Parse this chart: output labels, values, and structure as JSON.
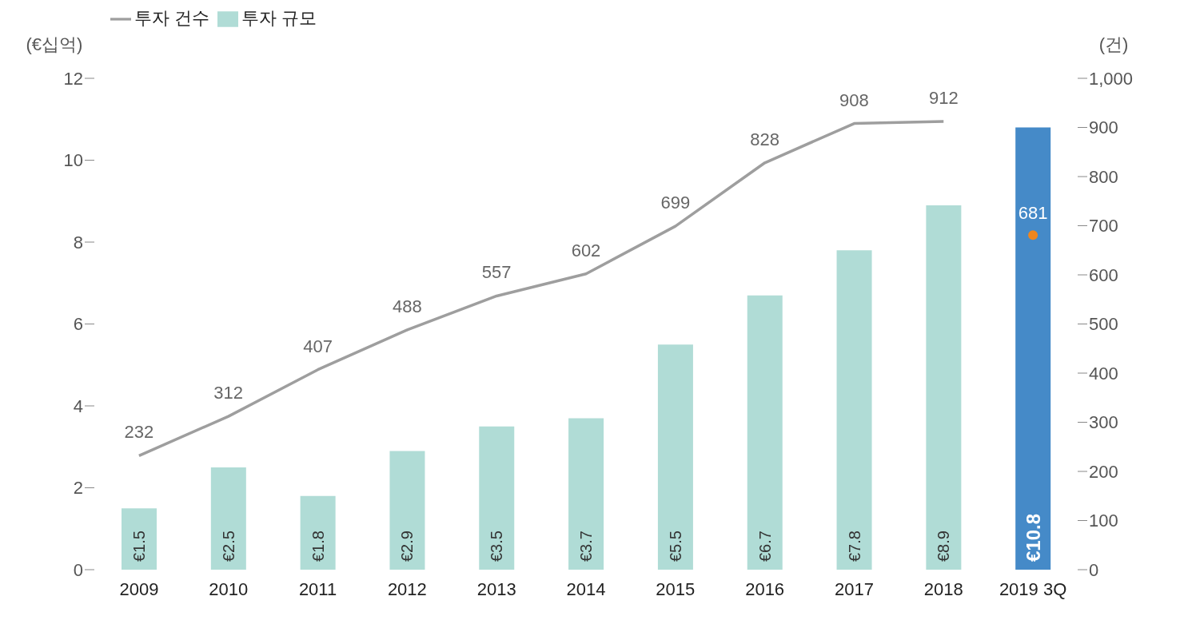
{
  "chart_data": {
    "type": "bar",
    "categories": [
      "2009",
      "2010",
      "2011",
      "2012",
      "2013",
      "2014",
      "2015",
      "2016",
      "2017",
      "2018",
      "2019 3Q"
    ],
    "ylabel": "(€십억)",
    "y2label": "(건)",
    "ylim": [
      0,
      12
    ],
    "yticks": [
      0,
      2,
      4,
      6,
      8,
      10,
      12
    ],
    "y2lim": [
      0,
      1000
    ],
    "y2ticks": [
      0,
      100,
      200,
      300,
      400,
      500,
      600,
      700,
      800,
      900,
      {
        "value": 1000,
        "label": "1,000"
      }
    ],
    "legend": "top left",
    "grid": false,
    "line_style": "solid",
    "series": [
      {
        "name": "투자 규모",
        "color": "#b0dcd6",
        "colors": [
          "#b0dcd6",
          "#b0dcd6",
          "#b0dcd6",
          "#b0dcd6",
          "#b0dcd6",
          "#b0dcd6",
          "#b0dcd6",
          "#b0dcd6",
          "#b0dcd6",
          "#b0dcd6",
          "#458ac8"
        ],
        "values": [
          1.5,
          2.5,
          1.8,
          2.9,
          3.5,
          3.7,
          5.5,
          6.7,
          7.8,
          8.9,
          10.8
        ],
        "value_labels": [
          "€1.5",
          "€2.5",
          "€1.8",
          "€2.9",
          "€3.5",
          "€3.7",
          "€5.5",
          "€6.7",
          "€7.8",
          "€8.9",
          "€10.8"
        ]
      },
      {
        "name": "투자 건수",
        "type": "line",
        "marker": "none",
        "axis": "y2",
        "color": "#9e9e9e",
        "values": [
          232,
          312,
          407,
          488,
          557,
          602,
          699,
          828,
          908,
          912,
          null
        ],
        "value_labels": [
          "232",
          "312",
          "407",
          "488",
          "557",
          "602",
          "699",
          "828",
          "908",
          "912",
          null
        ]
      },
      {
        "type": "scatter",
        "marker": "circle",
        "axis": "y2",
        "color": "#f0861e",
        "values": [
          null,
          null,
          null,
          null,
          null,
          null,
          null,
          null,
          null,
          null,
          681
        ],
        "value_labels": [
          null,
          null,
          null,
          null,
          null,
          null,
          null,
          null,
          null,
          null,
          "681"
        ]
      }
    ]
  }
}
